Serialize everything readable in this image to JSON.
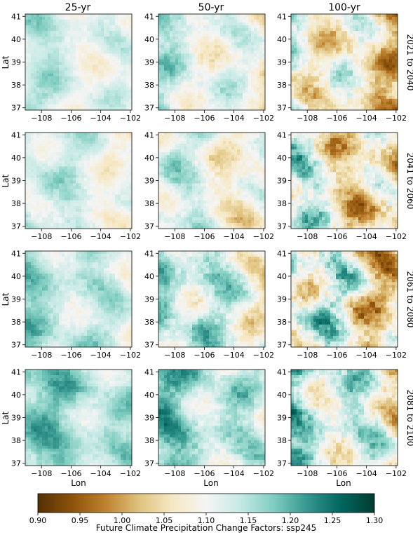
{
  "chart_data": {
    "type": "heatmap",
    "suptitle": "",
    "column_titles": [
      "25-yr",
      "50-yr",
      "100-yr"
    ],
    "row_labels": [
      "2021 to 2040",
      "2041 to 2060",
      "2061 to 2080",
      "2081 to 2100"
    ],
    "xlabel": "Lon",
    "ylabel": "Lat",
    "xlim": [
      -109.1,
      -101.9
    ],
    "ylim": [
      36.9,
      41.1
    ],
    "xticks": [
      -108,
      -106,
      -104,
      -102
    ],
    "xtick_labels": [
      "−108",
      "−106",
      "−104",
      "−102"
    ],
    "yticks": [
      37,
      38,
      39,
      40,
      41
    ],
    "ytick_labels": [
      "37",
      "38",
      "39",
      "40",
      "41"
    ],
    "colorbar": {
      "label": "Future Climate Precipitation Change Factors: ssp245",
      "min": 0.9,
      "max": 1.3,
      "ticks": [
        0.9,
        0.95,
        1.0,
        1.05,
        1.1,
        1.15,
        1.2,
        1.25,
        1.3
      ],
      "tick_labels": [
        "0.90",
        "0.95",
        "1.00",
        "1.05",
        "1.10",
        "1.15",
        "1.20",
        "1.25",
        "1.30"
      ],
      "colormap": "BrBG",
      "colors": [
        "#543005",
        "#8c510a",
        "#bf812d",
        "#dfc27d",
        "#f6e8c3",
        "#f5f5f5",
        "#c7eae5",
        "#80cdc1",
        "#35978f",
        "#01665e",
        "#003c30"
      ]
    },
    "grid": false,
    "panels": [
      {
        "row": 0,
        "col": 0,
        "period": "2021 to 2040",
        "return_period": "25-yr",
        "mean": 1.12,
        "min": 1.05,
        "max": 1.19
      },
      {
        "row": 0,
        "col": 1,
        "period": "2021 to 2040",
        "return_period": "50-yr",
        "mean": 1.11,
        "min": 1.02,
        "max": 1.21
      },
      {
        "row": 0,
        "col": 2,
        "period": "2021 to 2040",
        "return_period": "100-yr",
        "mean": 1.07,
        "min": 0.95,
        "max": 1.22
      },
      {
        "row": 1,
        "col": 0,
        "period": "2041 to 2060",
        "return_period": "25-yr",
        "mean": 1.12,
        "min": 1.05,
        "max": 1.2
      },
      {
        "row": 1,
        "col": 1,
        "period": "2041 to 2060",
        "return_period": "50-yr",
        "mean": 1.1,
        "min": 1.01,
        "max": 1.21
      },
      {
        "row": 1,
        "col": 2,
        "period": "2041 to 2060",
        "return_period": "100-yr",
        "mean": 1.07,
        "min": 0.93,
        "max": 1.25
      },
      {
        "row": 2,
        "col": 0,
        "period": "2061 to 2080",
        "return_period": "25-yr",
        "mean": 1.14,
        "min": 1.05,
        "max": 1.21
      },
      {
        "row": 2,
        "col": 1,
        "period": "2061 to 2080",
        "return_period": "50-yr",
        "mean": 1.13,
        "min": 0.99,
        "max": 1.23
      },
      {
        "row": 2,
        "col": 2,
        "period": "2061 to 2080",
        "return_period": "100-yr",
        "mean": 1.09,
        "min": 0.92,
        "max": 1.27
      },
      {
        "row": 3,
        "col": 0,
        "period": "2081 to 2100",
        "return_period": "25-yr",
        "mean": 1.16,
        "min": 1.07,
        "max": 1.23
      },
      {
        "row": 3,
        "col": 1,
        "period": "2081 to 2100",
        "return_period": "50-yr",
        "mean": 1.15,
        "min": 1.04,
        "max": 1.24
      },
      {
        "row": 3,
        "col": 2,
        "period": "2081 to 2100",
        "return_period": "100-yr",
        "mean": 1.12,
        "min": 0.97,
        "max": 1.26
      }
    ]
  }
}
